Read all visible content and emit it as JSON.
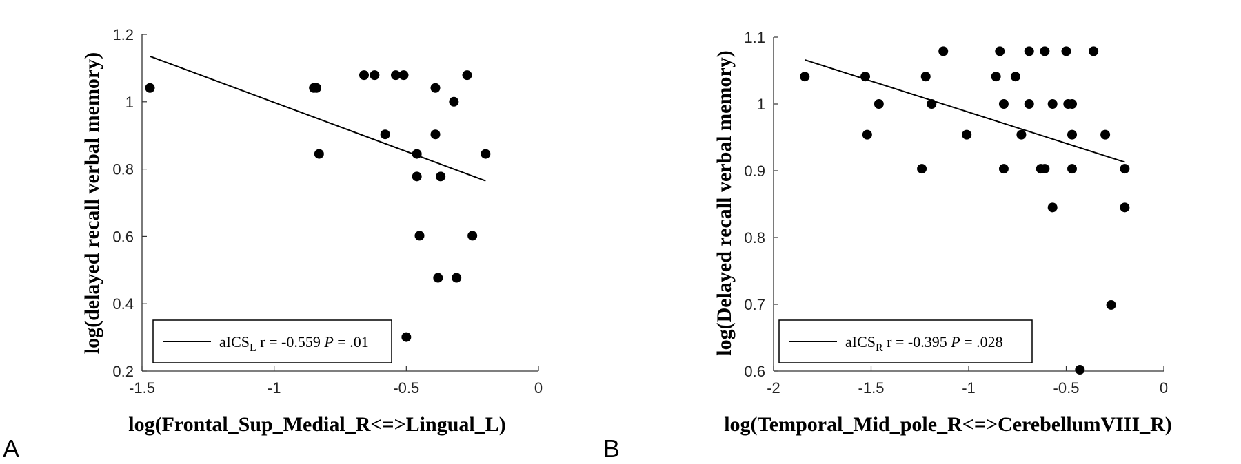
{
  "panels": [
    "A",
    "B"
  ],
  "chart_data": [
    {
      "type": "scatter",
      "panel": "A",
      "xlabel": "log(Frontal_Sup_Medial_R<=>Lingual_L)",
      "ylabel": "log(delayed recall verbal memory)",
      "xlim": [
        -1.5,
        0
      ],
      "ylim": [
        0.2,
        1.2
      ],
      "xticks": [
        -1.5,
        -1,
        -0.5,
        0
      ],
      "yticks": [
        0.2,
        0.4,
        0.6,
        0.8,
        1,
        1.2
      ],
      "xtick_labels": [
        "-1.5",
        "-1",
        "-0.5",
        "0"
      ],
      "ytick_labels": [
        "0.2",
        "0.4",
        "0.6",
        "0.8",
        "1",
        "1.2"
      ],
      "points": [
        {
          "x": -1.47,
          "y": 1.041
        },
        {
          "x": -0.85,
          "y": 1.041
        },
        {
          "x": -0.84,
          "y": 1.041
        },
        {
          "x": -0.83,
          "y": 0.845
        },
        {
          "x": -0.66,
          "y": 1.079
        },
        {
          "x": -0.62,
          "y": 1.079
        },
        {
          "x": -0.58,
          "y": 0.903
        },
        {
          "x": -0.54,
          "y": 1.079
        },
        {
          "x": -0.51,
          "y": 1.079
        },
        {
          "x": -0.5,
          "y": 0.301
        },
        {
          "x": -0.46,
          "y": 0.845
        },
        {
          "x": -0.46,
          "y": 0.778
        },
        {
          "x": -0.45,
          "y": 0.602
        },
        {
          "x": -0.39,
          "y": 1.041
        },
        {
          "x": -0.39,
          "y": 0.903
        },
        {
          "x": -0.38,
          "y": 0.477
        },
        {
          "x": -0.37,
          "y": 0.778
        },
        {
          "x": -0.32,
          "y": 1.0
        },
        {
          "x": -0.31,
          "y": 0.477
        },
        {
          "x": -0.27,
          "y": 1.079
        },
        {
          "x": -0.25,
          "y": 0.602
        },
        {
          "x": -0.2,
          "y": 0.845
        }
      ],
      "fit_line": {
        "x": [
          -1.47,
          -0.2
        ],
        "y": [
          1.135,
          0.765
        ]
      },
      "legend": {
        "prefix": "aICS",
        "subscript": "L",
        "stat": " r = -0.559  ",
        "p_label": "P",
        "p_value": " = .01"
      }
    },
    {
      "type": "scatter",
      "panel": "B",
      "xlabel": "log(Temporal_Mid_pole_R<=>CerebellumVIII_R)",
      "ylabel": "log(Delayed recall verbal memory)",
      "xlim": [
        -2,
        0
      ],
      "ylim": [
        0.6,
        1.1
      ],
      "xticks": [
        -2,
        -1.5,
        -1,
        -0.5,
        0
      ],
      "yticks": [
        0.6,
        0.7,
        0.8,
        0.9,
        1,
        1.1
      ],
      "xtick_labels": [
        "-2",
        "-1.5",
        "-1",
        "-0.5",
        "0"
      ],
      "ytick_labels": [
        "0.6",
        "0.7",
        "0.8",
        "0.9",
        "1",
        "1.1"
      ],
      "points": [
        {
          "x": -1.84,
          "y": 1.041
        },
        {
          "x": -1.53,
          "y": 1.041
        },
        {
          "x": -1.52,
          "y": 0.954
        },
        {
          "x": -1.46,
          "y": 1.0
        },
        {
          "x": -1.24,
          "y": 0.903
        },
        {
          "x": -1.22,
          "y": 1.041
        },
        {
          "x": -1.19,
          "y": 1.0
        },
        {
          "x": -1.13,
          "y": 1.079
        },
        {
          "x": -1.01,
          "y": 0.954
        },
        {
          "x": -0.86,
          "y": 1.041
        },
        {
          "x": -0.84,
          "y": 1.079
        },
        {
          "x": -0.82,
          "y": 1.0
        },
        {
          "x": -0.82,
          "y": 0.903
        },
        {
          "x": -0.76,
          "y": 1.041
        },
        {
          "x": -0.73,
          "y": 0.954
        },
        {
          "x": -0.69,
          "y": 1.079
        },
        {
          "x": -0.69,
          "y": 1.0
        },
        {
          "x": -0.63,
          "y": 0.903
        },
        {
          "x": -0.61,
          "y": 1.079
        },
        {
          "x": -0.61,
          "y": 0.903
        },
        {
          "x": -0.57,
          "y": 1.0
        },
        {
          "x": -0.57,
          "y": 0.845
        },
        {
          "x": -0.5,
          "y": 1.079
        },
        {
          "x": -0.49,
          "y": 1.0
        },
        {
          "x": -0.47,
          "y": 1.0
        },
        {
          "x": -0.47,
          "y": 0.954
        },
        {
          "x": -0.47,
          "y": 0.903
        },
        {
          "x": -0.43,
          "y": 0.602
        },
        {
          "x": -0.36,
          "y": 1.079
        },
        {
          "x": -0.3,
          "y": 0.954
        },
        {
          "x": -0.27,
          "y": 0.699
        },
        {
          "x": -0.2,
          "y": 0.903
        },
        {
          "x": -0.2,
          "y": 0.845
        }
      ],
      "fit_line": {
        "x": [
          -1.84,
          -0.2
        ],
        "y": [
          1.066,
          0.913
        ]
      },
      "legend": {
        "prefix": "aICS",
        "subscript": "R",
        "stat": " r = -0.395  ",
        "p_label": "P",
        "p_value": " = .028"
      }
    }
  ]
}
